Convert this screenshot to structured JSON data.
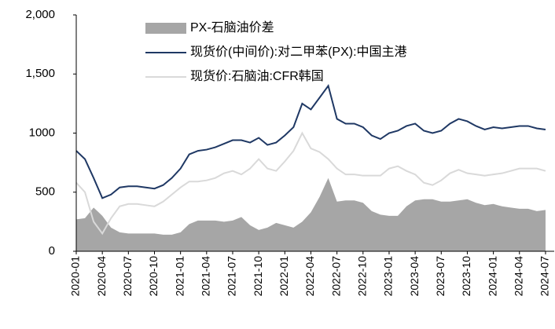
{
  "chart_data": {
    "type": "line",
    "categories": [
      "2020-01",
      null,
      null,
      "2020-04",
      null,
      null,
      "2020-07",
      null,
      null,
      "2020-10",
      null,
      null,
      "2021-01",
      null,
      null,
      "2021-04",
      null,
      null,
      "2021-07",
      null,
      null,
      "2021-10",
      null,
      null,
      "2022-01",
      null,
      null,
      "2022-04",
      null,
      null,
      "2022-07",
      null,
      null,
      "2022-10",
      null,
      null,
      "2023-01",
      null,
      null,
      "2023-04",
      null,
      null,
      "2023-07",
      null,
      null,
      "2023-10",
      null,
      null,
      "2024-01",
      null,
      null,
      "2024-04",
      null,
      null,
      "2024-07"
    ],
    "series": [
      {
        "name": "PX-石脑油价差",
        "color": "#a6a6a6",
        "style": "area",
        "values": [
          270,
          280,
          370,
          300,
          200,
          160,
          150,
          150,
          150,
          150,
          140,
          140,
          160,
          230,
          260,
          260,
          260,
          250,
          260,
          290,
          220,
          180,
          200,
          240,
          220,
          200,
          250,
          330,
          460,
          620,
          420,
          430,
          430,
          410,
          340,
          310,
          300,
          300,
          380,
          430,
          440,
          440,
          420,
          420,
          430,
          440,
          410,
          390,
          400,
          380,
          370,
          360,
          360,
          340,
          350
        ]
      },
      {
        "name": "现货价(中间价):对二甲苯(PX):中国主港",
        "color": "#1f3864",
        "style": "line",
        "values": [
          850,
          780,
          620,
          450,
          480,
          540,
          550,
          550,
          540,
          530,
          560,
          620,
          700,
          820,
          850,
          860,
          880,
          910,
          940,
          940,
          920,
          960,
          900,
          920,
          980,
          1050,
          1250,
          1200,
          1300,
          1400,
          1120,
          1080,
          1080,
          1050,
          980,
          950,
          1000,
          1020,
          1060,
          1080,
          1020,
          1000,
          1020,
          1080,
          1120,
          1100,
          1060,
          1030,
          1050,
          1040,
          1050,
          1060,
          1060,
          1040,
          1030
        ]
      },
      {
        "name": "现货价:石脑油:CFR韩国",
        "color": "#d9d9d9",
        "style": "line",
        "values": [
          580,
          500,
          250,
          150,
          280,
          380,
          400,
          400,
          390,
          380,
          420,
          480,
          540,
          590,
          590,
          600,
          620,
          660,
          680,
          650,
          700,
          780,
          700,
          680,
          760,
          850,
          1000,
          870,
          840,
          780,
          700,
          650,
          650,
          640,
          640,
          640,
          700,
          720,
          680,
          650,
          580,
          560,
          600,
          660,
          690,
          660,
          650,
          640,
          650,
          660,
          680,
          700,
          700,
          700,
          680
        ]
      }
    ],
    "ylim": [
      0,
      2000
    ],
    "yticks": [
      0,
      500,
      1000,
      {
        "value": 1500,
        "label": "1,500"
      },
      {
        "value": 2000,
        "label": "2,000"
      }
    ],
    "grid": false,
    "legend": "top-left"
  }
}
